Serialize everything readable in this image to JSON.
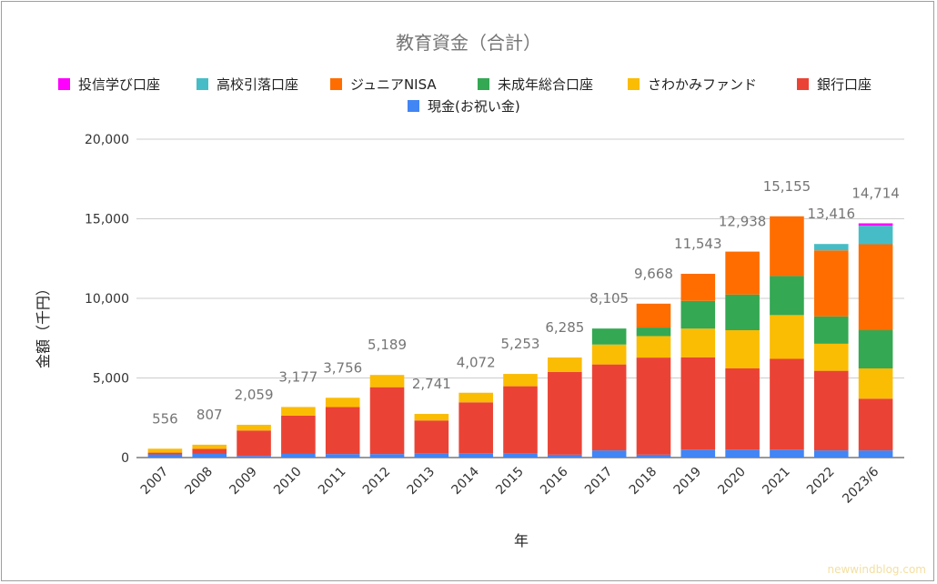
{
  "chart_data": {
    "type": "bar",
    "stacked": true,
    "title": "教育資金（合計）",
    "xlabel": "年",
    "ylabel": "金額（千円）",
    "ylim": [
      0,
      20000
    ],
    "yticks": [
      "0",
      "5,000",
      "10,000",
      "15,000",
      "20,000"
    ],
    "grid": true,
    "legend_position": "top",
    "categories": [
      "2007",
      "2008",
      "2009",
      "2010",
      "2011",
      "2012",
      "2013",
      "2014",
      "2015",
      "2016",
      "2017",
      "2018",
      "2019",
      "2020",
      "2021",
      "2022",
      "2023/6"
    ],
    "totals": [
      "556",
      "807",
      "2,059",
      "3,177",
      "3,756",
      "5,189",
      "2,741",
      "4,072",
      "5,253",
      "6,285",
      "8,105",
      "9,668",
      "11,543",
      "12,938",
      "15,155",
      "13,416",
      "14,714"
    ],
    "series": [
      {
        "name": "現金(お祝い金)",
        "color": "#4285f4",
        "values": [
          200,
          230,
          100,
          230,
          220,
          220,
          280,
          270,
          280,
          180,
          450,
          180,
          500,
          500,
          500,
          450,
          450
        ]
      },
      {
        "name": "銀行口座",
        "color": "#ea4335",
        "values": [
          110,
          320,
          1600,
          2400,
          2950,
          4200,
          2050,
          3200,
          4200,
          5200,
          5400,
          6100,
          5800,
          5100,
          5700,
          5000,
          3250
        ]
      },
      {
        "name": "さわかみファンド",
        "color": "#fbbc04",
        "values": [
          246,
          257,
          359,
          547,
          586,
          769,
          411,
          602,
          773,
          905,
          1250,
          1350,
          1800,
          2400,
          2750,
          1700,
          1900
        ]
      },
      {
        "name": "未成年総合口座",
        "color": "#34a853",
        "values": [
          0,
          0,
          0,
          0,
          0,
          0,
          0,
          0,
          0,
          0,
          1005,
          538,
          1743,
          2238,
          2455,
          1716,
          2400
        ]
      },
      {
        "name": "ジュニアNISA",
        "color": "#ff6d01",
        "values": [
          0,
          0,
          0,
          0,
          0,
          0,
          0,
          0,
          0,
          0,
          0,
          1500,
          1700,
          2700,
          3750,
          4150,
          5400
        ]
      },
      {
        "name": "高校引落口座",
        "color": "#46bdc6",
        "values": [
          0,
          0,
          0,
          0,
          0,
          0,
          0,
          0,
          0,
          0,
          0,
          0,
          0,
          0,
          0,
          400,
          1164
        ]
      },
      {
        "name": "投信学び口座",
        "color": "#ff00ff",
        "values": [
          0,
          0,
          0,
          0,
          0,
          0,
          0,
          0,
          0,
          0,
          0,
          0,
          0,
          0,
          0,
          0,
          150
        ]
      }
    ],
    "legend_order": [
      "投信学び口座",
      "高校引落口座",
      "ジュニアNISA",
      "未成年総合口座",
      "さわかみファンド",
      "銀行口座",
      "現金(お祝い金)"
    ]
  },
  "watermark": "newwindblog.com"
}
